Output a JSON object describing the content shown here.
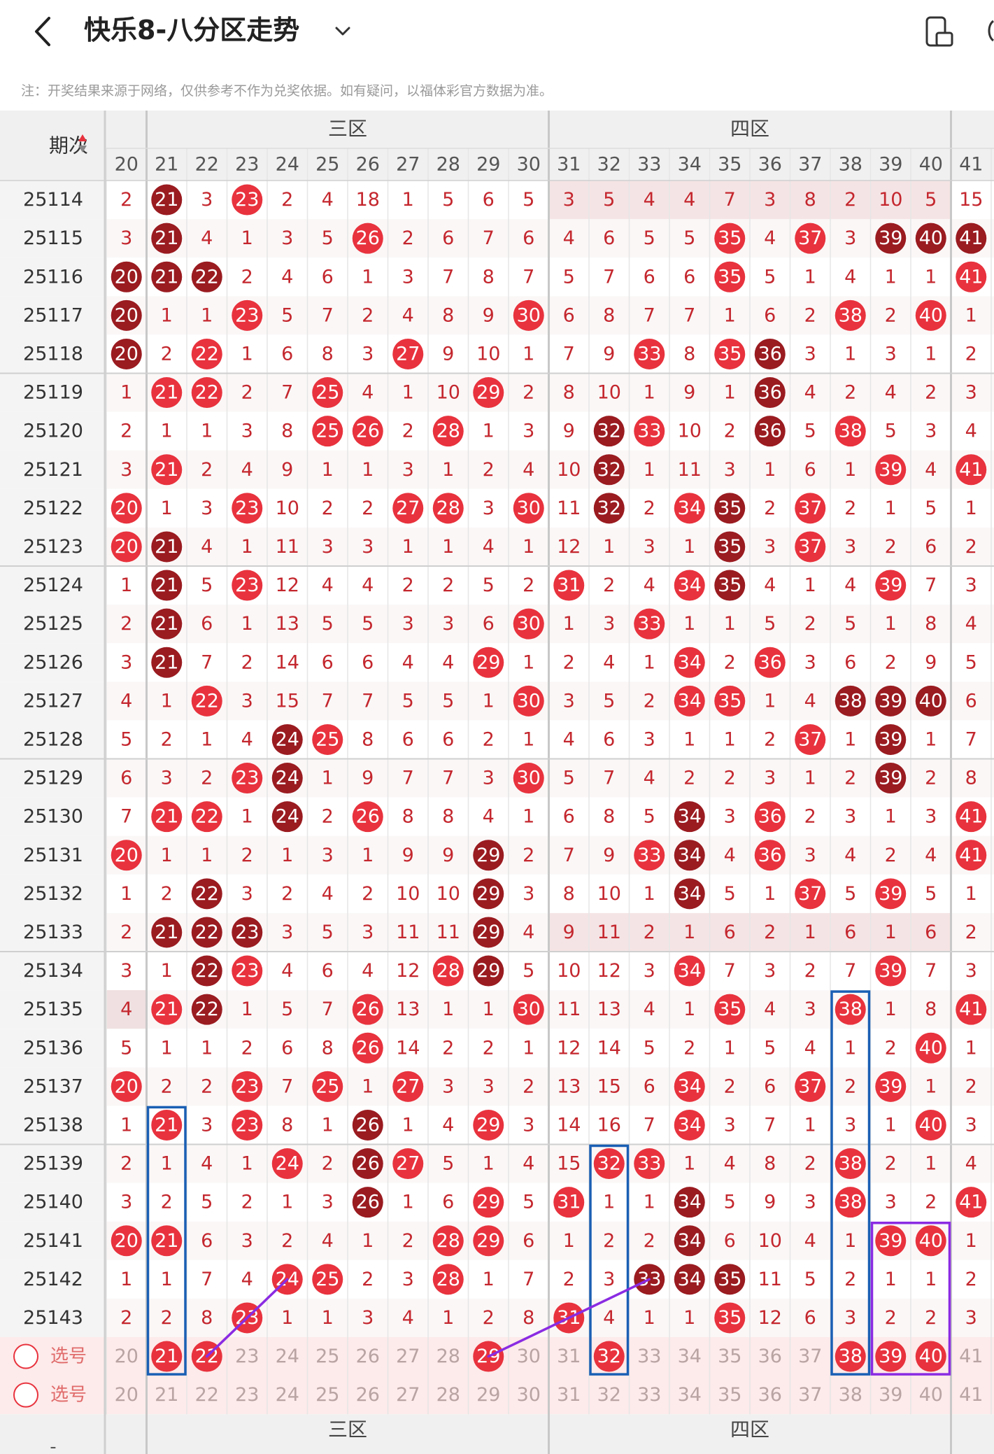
{
  "header": {
    "title": "快乐8-八分区走势",
    "back_icon": "chevron-left-icon",
    "dropdown_icon": "chevron-down-icon",
    "device_icon": "phone-rotate-icon"
  },
  "notice": "注：开奖结果来源于网络，仅供参考不作为兑奖依据。如有疑问，以福体彩官方数据为准。",
  "table": {
    "issue_header": "期次",
    "sort_icon": "sort-arrows-icon",
    "zones": [
      {
        "label": "三区",
        "start": 21,
        "end": 30
      },
      {
        "label": "四区",
        "start": 31,
        "end": 40
      }
    ],
    "columns": [
      20,
      21,
      22,
      23,
      24,
      25,
      26,
      27,
      28,
      29,
      30,
      31,
      32,
      33,
      34,
      35,
      36,
      37,
      38,
      39,
      40,
      41
    ],
    "rows": [
      {
        "issue": "25114",
        "cells": [
          2,
          "21d",
          3,
          "23r",
          2,
          4,
          18,
          1,
          5,
          6,
          5,
          3,
          5,
          4,
          4,
          7,
          3,
          8,
          2,
          10,
          5,
          15
        ]
      },
      {
        "issue": "25115",
        "cells": [
          3,
          "21d",
          4,
          1,
          3,
          5,
          "26r",
          2,
          6,
          7,
          6,
          4,
          6,
          5,
          5,
          "35r",
          4,
          "37r",
          3,
          "39d",
          "40d",
          "41d"
        ]
      },
      {
        "issue": "25116",
        "cells": [
          "20d",
          "21d",
          "22d",
          2,
          4,
          6,
          1,
          3,
          7,
          8,
          7,
          5,
          7,
          6,
          6,
          "35r",
          5,
          1,
          4,
          1,
          1,
          "41r"
        ]
      },
      {
        "issue": "25117",
        "cells": [
          "20d",
          1,
          1,
          "23r",
          5,
          7,
          2,
          4,
          8,
          9,
          "30r",
          6,
          8,
          7,
          7,
          1,
          6,
          2,
          "38r",
          2,
          "40r",
          1
        ]
      },
      {
        "issue": "25118",
        "cells": [
          "20d",
          2,
          "22r",
          1,
          6,
          8,
          3,
          "27r",
          9,
          10,
          1,
          7,
          9,
          "33r",
          8,
          "35r",
          "36d",
          3,
          1,
          3,
          1,
          2
        ]
      },
      {
        "issue": "25119",
        "cells": [
          1,
          "21r",
          "22r",
          2,
          7,
          "25r",
          4,
          1,
          10,
          "29r",
          2,
          8,
          10,
          1,
          9,
          1,
          "36d",
          4,
          2,
          4,
          2,
          3
        ]
      },
      {
        "issue": "25120",
        "cells": [
          2,
          1,
          1,
          3,
          8,
          "25r",
          "26r",
          2,
          "28r",
          1,
          3,
          9,
          "32d",
          "33r",
          10,
          2,
          "36d",
          5,
          "38r",
          5,
          3,
          4
        ]
      },
      {
        "issue": "25121",
        "cells": [
          3,
          "21r",
          2,
          4,
          9,
          1,
          1,
          3,
          1,
          2,
          4,
          10,
          "32d",
          1,
          11,
          3,
          1,
          6,
          1,
          "39r",
          4,
          "41r"
        ]
      },
      {
        "issue": "25122",
        "cells": [
          "20r",
          1,
          3,
          "23r",
          10,
          2,
          2,
          "27r",
          "28r",
          3,
          "30r",
          11,
          "32d",
          2,
          "34r",
          "35d",
          2,
          "37r",
          2,
          1,
          5,
          1
        ]
      },
      {
        "issue": "25123",
        "cells": [
          "20r",
          "21d",
          4,
          1,
          11,
          3,
          3,
          1,
          1,
          4,
          1,
          12,
          1,
          3,
          1,
          "35d",
          3,
          "37r",
          3,
          2,
          6,
          2
        ]
      },
      {
        "issue": "25124",
        "cells": [
          1,
          "21d",
          5,
          "23r",
          12,
          4,
          4,
          2,
          2,
          5,
          2,
          "31r",
          2,
          4,
          "34r",
          "35d",
          4,
          1,
          4,
          "39r",
          7,
          3
        ]
      },
      {
        "issue": "25125",
        "cells": [
          2,
          "21d",
          6,
          1,
          13,
          5,
          5,
          3,
          3,
          6,
          "30r",
          1,
          3,
          "33r",
          1,
          1,
          5,
          2,
          5,
          1,
          8,
          4
        ]
      },
      {
        "issue": "25126",
        "cells": [
          3,
          "21d",
          7,
          2,
          14,
          6,
          6,
          4,
          4,
          "29r",
          1,
          2,
          4,
          1,
          "34r",
          2,
          "36r",
          3,
          6,
          2,
          9,
          5
        ]
      },
      {
        "issue": "25127",
        "cells": [
          4,
          1,
          "22r",
          3,
          15,
          7,
          7,
          5,
          5,
          1,
          "30r",
          3,
          5,
          2,
          "34r",
          "35r",
          1,
          4,
          "38d",
          "39d",
          "40d",
          6
        ]
      },
      {
        "issue": "25128",
        "cells": [
          5,
          2,
          1,
          4,
          "24d",
          "25r",
          8,
          6,
          6,
          2,
          1,
          4,
          6,
          3,
          1,
          1,
          2,
          "37r",
          1,
          "39d",
          1,
          7
        ]
      },
      {
        "issue": "25129",
        "cells": [
          6,
          3,
          2,
          "23r",
          "24d",
          1,
          9,
          7,
          7,
          3,
          "30r",
          5,
          7,
          4,
          2,
          2,
          3,
          1,
          2,
          "39d",
          2,
          8
        ]
      },
      {
        "issue": "25130",
        "cells": [
          7,
          "21r",
          "22r",
          1,
          "24d",
          2,
          "26r",
          8,
          8,
          4,
          1,
          6,
          8,
          5,
          "34d",
          3,
          "36r",
          2,
          3,
          1,
          3,
          "41r"
        ]
      },
      {
        "issue": "25131",
        "cells": [
          "20r",
          1,
          1,
          2,
          1,
          3,
          1,
          9,
          9,
          "29d",
          2,
          7,
          9,
          "33r",
          "34d",
          4,
          "36r",
          3,
          4,
          2,
          4,
          "41r"
        ]
      },
      {
        "issue": "25132",
        "cells": [
          1,
          2,
          "22d",
          3,
          2,
          4,
          2,
          10,
          10,
          "29d",
          3,
          8,
          10,
          1,
          "34d",
          5,
          1,
          "37r",
          5,
          "39r",
          5,
          1
        ]
      },
      {
        "issue": "25133",
        "cells": [
          2,
          "21d",
          "22d",
          "23d",
          3,
          5,
          3,
          11,
          11,
          "29d",
          4,
          9,
          11,
          2,
          1,
          6,
          2,
          1,
          6,
          1,
          6,
          2
        ]
      },
      {
        "issue": "25134",
        "cells": [
          3,
          1,
          "22d",
          "23r",
          4,
          6,
          4,
          12,
          "28r",
          "29d",
          5,
          10,
          12,
          3,
          "34r",
          7,
          3,
          2,
          7,
          "39r",
          7,
          3
        ]
      },
      {
        "issue": "25135",
        "cells": [
          4,
          "21r",
          "22d",
          1,
          5,
          7,
          "26r",
          13,
          1,
          1,
          "30r",
          11,
          13,
          4,
          1,
          "35r",
          4,
          3,
          "38r",
          1,
          8,
          "41r"
        ]
      },
      {
        "issue": "25136",
        "cells": [
          5,
          1,
          1,
          2,
          6,
          8,
          "26r",
          14,
          2,
          2,
          1,
          12,
          14,
          5,
          2,
          1,
          5,
          4,
          1,
          2,
          "40r",
          1
        ]
      },
      {
        "issue": "25137",
        "cells": [
          "20r",
          2,
          2,
          "23r",
          7,
          "25r",
          1,
          "27r",
          3,
          3,
          2,
          13,
          15,
          6,
          "34r",
          2,
          6,
          "37r",
          2,
          "39r",
          1,
          2
        ]
      },
      {
        "issue": "25138",
        "cells": [
          1,
          "21r",
          3,
          "23r",
          8,
          1,
          "26d",
          1,
          4,
          "29r",
          3,
          14,
          16,
          7,
          "34r",
          3,
          7,
          1,
          3,
          1,
          "40r",
          3
        ]
      },
      {
        "issue": "25139",
        "cells": [
          2,
          1,
          4,
          1,
          "24r",
          2,
          "26d",
          "27r",
          5,
          1,
          4,
          15,
          "32r",
          "33r",
          1,
          4,
          8,
          2,
          "38r",
          2,
          1,
          4
        ]
      },
      {
        "issue": "25140",
        "cells": [
          3,
          2,
          5,
          2,
          1,
          3,
          "26d",
          1,
          6,
          "29r",
          5,
          "31r",
          1,
          1,
          "34d",
          5,
          9,
          3,
          "38r",
          3,
          2,
          "41r"
        ]
      },
      {
        "issue": "25141",
        "cells": [
          "20r",
          "21r",
          6,
          3,
          2,
          4,
          1,
          2,
          "28r",
          "29r",
          6,
          1,
          2,
          2,
          "34d",
          6,
          10,
          4,
          1,
          "39r",
          "40r",
          1
        ]
      },
      {
        "issue": "25142",
        "cells": [
          1,
          1,
          7,
          4,
          "24r",
          "25r",
          2,
          3,
          "28r",
          1,
          7,
          2,
          3,
          "33d",
          "34d",
          "35d",
          11,
          5,
          2,
          1,
          1,
          2
        ]
      },
      {
        "issue": "25143",
        "cells": [
          2,
          2,
          8,
          "23r",
          1,
          1,
          3,
          4,
          1,
          2,
          8,
          "31r",
          4,
          1,
          1,
          "35r",
          12,
          6,
          3,
          2,
          2,
          3
        ]
      }
    ],
    "select_label": "选号",
    "select_row1_picked": [
      21,
      22,
      29,
      32,
      38,
      39,
      40
    ],
    "bottom_zones": [
      "三区",
      "四区"
    ],
    "bottom_issue_placeholder": "-"
  },
  "colors": {
    "red_ball": "#e8323d",
    "dark_ball": "#9a1b20",
    "digit": "#c4272e",
    "gray_digit": "#b9a3a3",
    "blue_box": "#1a5fb4",
    "purple_box": "#8a2be2"
  }
}
